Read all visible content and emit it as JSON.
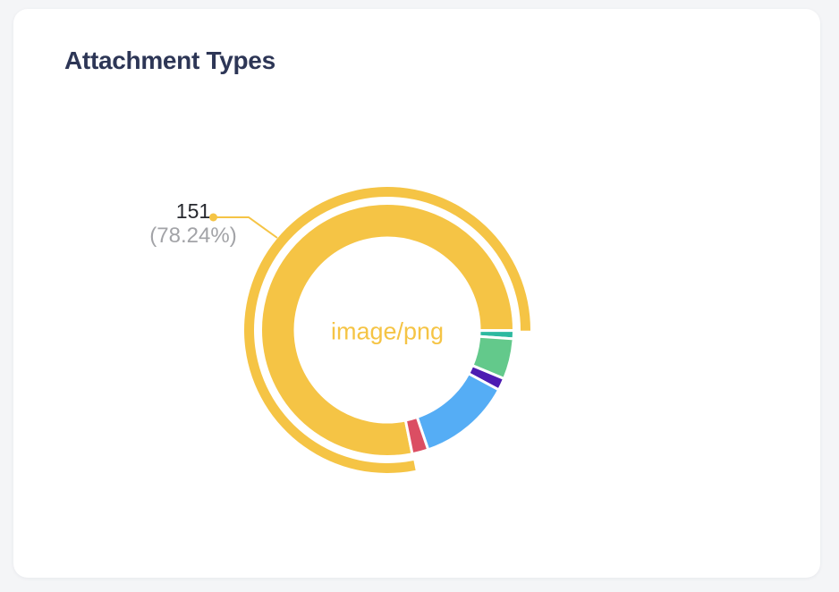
{
  "card": {
    "title": "Attachment Types"
  },
  "chart_data": {
    "type": "pie",
    "variant": "donut",
    "title": "Attachment Types",
    "legend": "none",
    "grid": "off",
    "center_label": "image/png",
    "annotation": {
      "value_text": "151",
      "percent_text": "(78.24%)"
    },
    "total_estimated": 193,
    "rotation_deg": 168.6,
    "slices": [
      {
        "label": "image/png",
        "value": 151,
        "percent": 78.24,
        "color": "#F5C445",
        "color_name": "yellow",
        "selected": true,
        "label_visible": true
      },
      {
        "label": null,
        "value": 2,
        "percent": 1.04,
        "color": "#2DB9A0",
        "color_name": "teal",
        "estimated": true
      },
      {
        "label": null,
        "value": 10,
        "percent": 5.18,
        "color": "#63C98B",
        "color_name": "green",
        "estimated": true
      },
      {
        "label": null,
        "value": 3,
        "percent": 1.55,
        "color": "#4D1CB2",
        "color_name": "purple",
        "estimated": true
      },
      {
        "label": null,
        "value": 23,
        "percent": 11.92,
        "color": "#55ADF5",
        "color_name": "blue",
        "estimated": true
      },
      {
        "label": null,
        "value": 4,
        "percent": 2.07,
        "color": "#DB4E63",
        "color_name": "red",
        "estimated": true
      }
    ]
  },
  "colors": {
    "page_background": "#F4F5F7",
    "card_background": "#FFFFFF",
    "title_text": "#2D3656",
    "annotation_value_text": "#26282E",
    "annotation_percent_text": "#A2A3A7",
    "slice_border": "#FFFFFF"
  }
}
